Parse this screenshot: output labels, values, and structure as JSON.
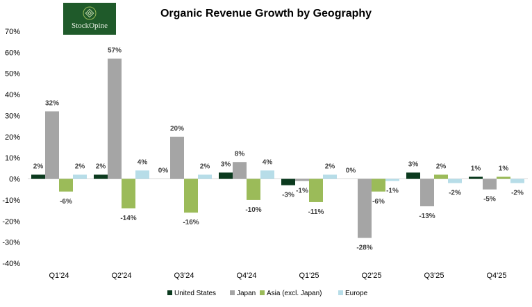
{
  "chart_data": {
    "type": "bar",
    "title": "Organic Revenue Growth by Geography",
    "xlabel": "",
    "ylabel": "",
    "ylim": [
      -40,
      70
    ],
    "yticks": [
      "70%",
      "60%",
      "50%",
      "40%",
      "30%",
      "20%",
      "10%",
      "0%",
      "-10%",
      "-20%",
      "-30%",
      "-40%"
    ],
    "yticks_values": [
      70,
      60,
      50,
      40,
      30,
      20,
      10,
      0,
      -10,
      -20,
      -30,
      -40
    ],
    "grid": false,
    "legend_position": "bottom",
    "categories": [
      "Q1'24",
      "Q2'24",
      "Q3'24",
      "Q4'24",
      "Q1'25",
      "Q2'25",
      "Q3'25",
      "Q4'25"
    ],
    "series": [
      {
        "name": "United States",
        "color": "#0b3a1e",
        "values": [
          2,
          2,
          0,
          3,
          -3,
          0,
          3,
          1
        ]
      },
      {
        "name": "Japan",
        "color": "#a5a5a5",
        "values": [
          32,
          57,
          20,
          8,
          -1,
          -28,
          -13,
          -5
        ]
      },
      {
        "name": "Asia (excl. Japan)",
        "color": "#9bbb59",
        "values": [
          -6,
          -14,
          -16,
          -10,
          -11,
          -6,
          2,
          1
        ]
      },
      {
        "name": "Europe",
        "color": "#b7dde8",
        "values": [
          2,
          4,
          2,
          4,
          2,
          -1,
          -2,
          -2
        ]
      }
    ]
  },
  "logo": {
    "text": "StockOpine"
  }
}
